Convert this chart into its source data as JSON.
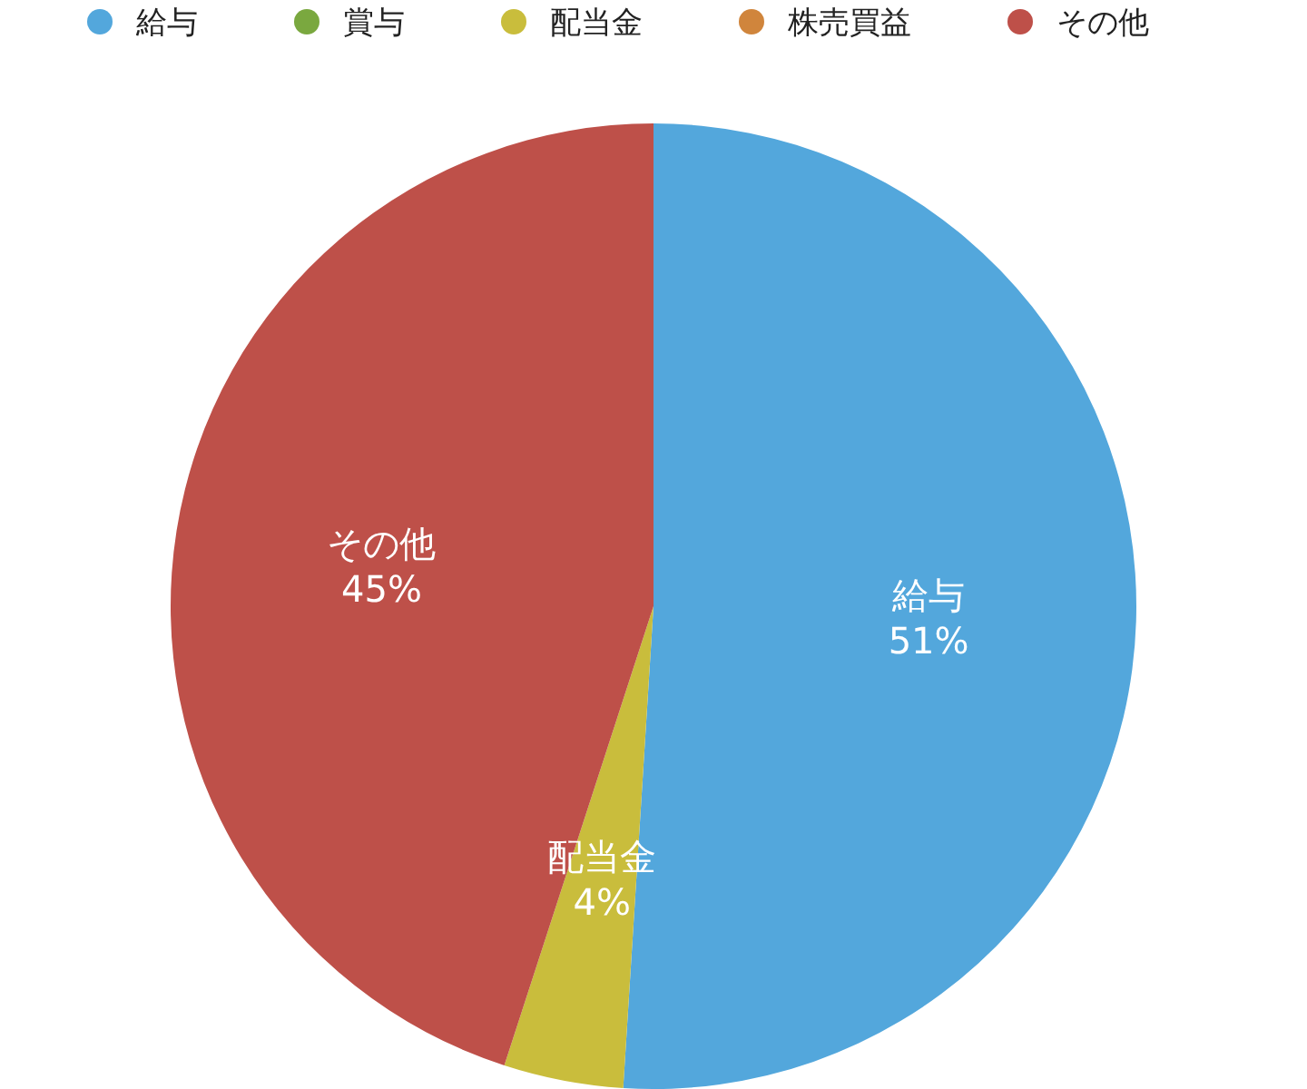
{
  "chart_data": {
    "type": "pie",
    "categories": [
      "給与",
      "賞与",
      "配当金",
      "株売買益",
      "その他"
    ],
    "values": [
      51,
      0,
      4,
      0,
      45
    ],
    "colors": [
      "#53a7dc",
      "#7aa83f",
      "#c9bd3c",
      "#d0853c",
      "#be5049"
    ],
    "value_labels": [
      "51%",
      null,
      "4%",
      null,
      "45%"
    ],
    "legend": "top"
  }
}
